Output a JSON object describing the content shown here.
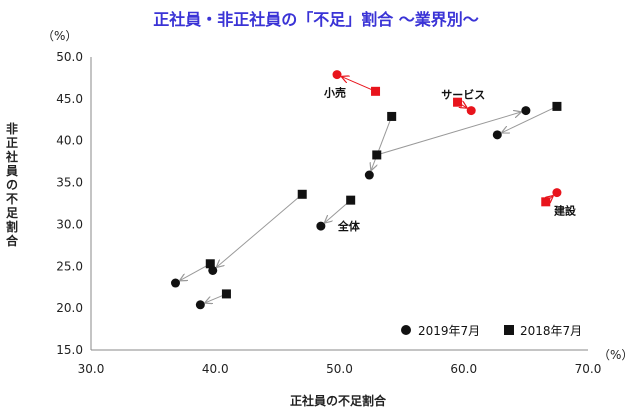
{
  "chart_data": {
    "type": "scatter",
    "title": "正社員・非正社員の「不足」割合 ～業界別～",
    "xlabel": "正社員の不足割合",
    "ylabel": "非正社員の不足割合",
    "x_unit": "（%）",
    "y_unit": "（%）",
    "xlim": [
      30,
      70
    ],
    "ylim": [
      15,
      50
    ],
    "x_ticks": [
      "30.0",
      "40.0",
      "50.0",
      "60.0",
      "70.0"
    ],
    "y_ticks": [
      "15.0",
      "20.0",
      "25.0",
      "30.0",
      "35.0",
      "40.0",
      "45.0",
      "50.0"
    ],
    "grid": false,
    "legend_position": "bottom-right",
    "series": [
      {
        "name": "2019年7月",
        "marker": "circle"
      },
      {
        "name": "2018年7月",
        "marker": "square"
      }
    ],
    "pairs": [
      {
        "label": "小売",
        "highlight": true,
        "from": [
          52.9,
          45.9
        ],
        "to": [
          49.8,
          47.9
        ]
      },
      {
        "label": "サービス",
        "highlight": true,
        "from": [
          59.5,
          44.6
        ],
        "to": [
          60.6,
          43.6
        ]
      },
      {
        "label": "建設",
        "highlight": true,
        "from": [
          66.6,
          32.7
        ],
        "to": [
          67.5,
          33.8
        ]
      },
      {
        "label": "全体",
        "highlight": false,
        "from": [
          50.9,
          32.9
        ],
        "to": [
          48.5,
          29.8
        ]
      },
      {
        "label": "",
        "highlight": false,
        "from": [
          54.2,
          42.9
        ],
        "to": [
          52.4,
          35.9
        ]
      },
      {
        "label": "",
        "highlight": false,
        "from": [
          53.0,
          38.3
        ],
        "to": [
          65.0,
          43.6
        ]
      },
      {
        "label": "",
        "highlight": false,
        "from": [
          67.5,
          44.1
        ],
        "to": [
          62.7,
          40.7
        ]
      },
      {
        "label": "",
        "highlight": false,
        "from": [
          47.0,
          33.6
        ],
        "to": [
          39.8,
          24.5
        ]
      },
      {
        "label": "",
        "highlight": false,
        "from": [
          39.6,
          25.3
        ],
        "to": [
          36.8,
          23.0
        ]
      },
      {
        "label": "",
        "highlight": false,
        "from": [
          40.9,
          21.7
        ],
        "to": [
          38.8,
          20.4
        ]
      }
    ],
    "colors": {
      "highlight": "#e8141c",
      "normal": "#111111",
      "arrow": "#999999"
    }
  }
}
